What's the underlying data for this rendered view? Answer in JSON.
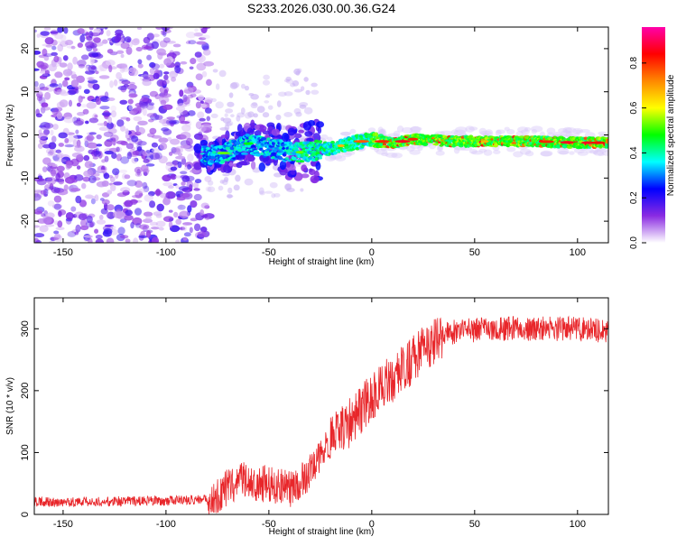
{
  "title": "S233.2026.030.00.36.G24",
  "chart_data": [
    {
      "type": "heatmap",
      "xlabel": "Height of straight line (km)",
      "ylabel": "Frequency (Hz)",
      "xlim": [
        -164,
        115
      ],
      "ylim": [
        -25,
        25
      ],
      "xticks": [
        -150,
        -100,
        -50,
        0,
        50,
        100
      ],
      "yticks": [
        -20,
        -10,
        0,
        10,
        20
      ],
      "colorbar": {
        "label": "Normalized spectral amplitude",
        "range": [
          0,
          0.96
        ],
        "ticks": [
          0.0,
          0.2,
          0.4,
          0.6,
          0.8
        ],
        "colors": [
          "#ffffff",
          "#8a2be2",
          "#0000ff",
          "#00ffff",
          "#00ff00",
          "#ffff00",
          "#ff8800",
          "#ff0000",
          "#ff00aa"
        ]
      },
      "ridge": {
        "x": [
          -80,
          -70,
          -60,
          -50,
          -40,
          -30,
          -20,
          -10,
          0,
          10,
          20,
          40,
          60,
          80,
          100,
          115
        ],
        "y": [
          -5,
          -4,
          -2,
          -3,
          -4,
          -4,
          -3,
          -2,
          -1,
          -2,
          -1,
          -1.5,
          -1.5,
          -1.5,
          -1.8,
          -1.8
        ]
      },
      "grid": false
    },
    {
      "type": "line",
      "xlabel": "Height of straight line (km)",
      "ylabel": "SNR (10 * v/v)",
      "xlim": [
        -164,
        115
      ],
      "ylim": [
        0,
        350
      ],
      "xticks": [
        -150,
        -100,
        -50,
        0,
        50,
        100
      ],
      "yticks": [
        0,
        100,
        200,
        300
      ],
      "color": "#e8262a",
      "series": [
        {
          "x": [
            -164,
            -150,
            -130,
            -110,
            -100,
            -90,
            -80,
            -75,
            -70,
            -65,
            -60,
            -55,
            -50,
            -45,
            -40,
            -35,
            -30,
            -25,
            -20,
            -15,
            -10,
            -5,
            0,
            5,
            10,
            15,
            20,
            25,
            30,
            35,
            40,
            50,
            60,
            70,
            80,
            90,
            100,
            110,
            115
          ],
          "y": [
            20,
            20,
            21,
            22,
            22,
            23,
            25,
            30,
            45,
            55,
            55,
            50,
            48,
            45,
            40,
            50,
            70,
            100,
            120,
            135,
            150,
            170,
            190,
            205,
            220,
            235,
            250,
            265,
            280,
            290,
            295,
            298,
            300,
            300,
            300,
            300,
            300,
            298,
            295
          ]
        }
      ],
      "grid": false
    }
  ]
}
